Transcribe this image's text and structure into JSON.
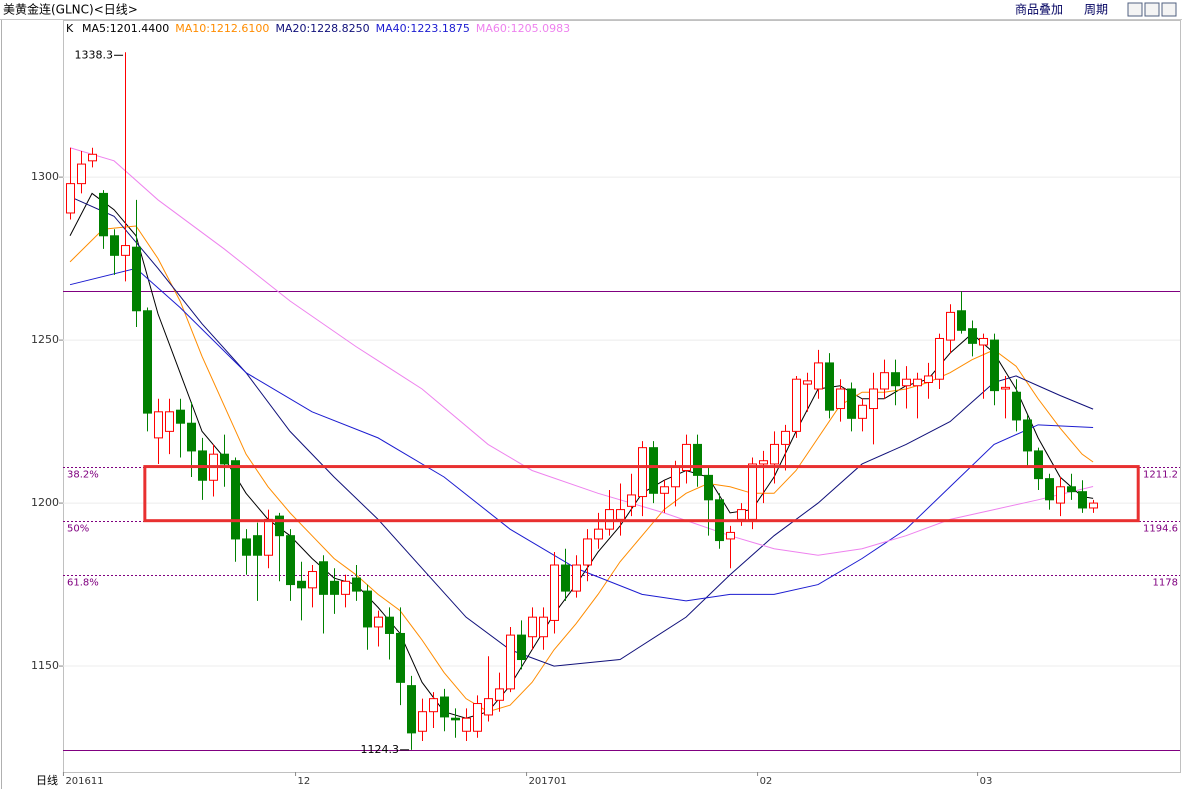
{
  "chart_data": {
    "type": "candlestick",
    "title": "美黄金连(GLNC)<日线>",
    "toolbar": [
      "商品叠加",
      "周期"
    ],
    "indicator": "K",
    "period_label": "日线",
    "up_color": "#ff0000",
    "down_color": "#008000",
    "open": [
      1289,
      1298,
      1305,
      1295,
      1282,
      1276,
      1278.5,
      1259,
      1220,
      1222,
      1228.5,
      1224.5,
      1216,
      1207,
      1215,
      1213,
      1189,
      1190,
      1184,
      1196,
      1190,
      1176,
      1174,
      1182,
      1176,
      1172,
      1177,
      1173,
      1162,
      1165,
      1160,
      1144,
      1130,
      1136,
      1140.5,
      1134,
      1130,
      1130,
      1135,
      1139.5,
      1143,
      1159.5,
      1159,
      1159,
      1164,
      1181,
      1173,
      1181,
      1189,
      1192,
      1195,
      1199,
      1202,
      1217,
      1203,
      1205,
      1210,
      1218,
      1208.5,
      1201,
      1189,
      1195,
      1195,
      1212,
      1212,
      1218,
      1222,
      1236.5,
      1235,
      1243,
      1229,
      1235,
      1226,
      1229,
      1235,
      1240,
      1236,
      1236,
      1237,
      1238,
      1250,
      1259,
      1253.5,
      1248.5,
      1250,
      1235,
      1234,
      1225.5,
      1216,
      1207.5,
      1200,
      1205,
      1203.5,
      1198.5
    ],
    "high": [
      1309,
      1308,
      1309,
      1296,
      1284,
      1338.3,
      1293,
      1260,
      1232,
      1232,
      1232,
      1231,
      1220,
      1218,
      1221,
      1214,
      1192,
      1194,
      1198,
      1197,
      1192,
      1182,
      1181,
      1184,
      1180,
      1178,
      1181,
      1175,
      1167,
      1168,
      1168,
      1147,
      1140,
      1142,
      1143,
      1137,
      1137,
      1141,
      1153,
      1148,
      1162,
      1164,
      1168,
      1168,
      1185,
      1186,
      1184,
      1192,
      1197,
      1204,
      1206,
      1209,
      1219,
      1219,
      1207,
      1213,
      1221,
      1221,
      1211,
      1203,
      1193,
      1200,
      1214,
      1216,
      1222,
      1224,
      1239,
      1240,
      1247,
      1246,
      1238,
      1237,
      1232,
      1240,
      1244,
      1244,
      1242,
      1240,
      1243,
      1252,
      1261,
      1265,
      1256,
      1252,
      1252,
      1239,
      1238,
      1227,
      1217,
      1209,
      1208,
      1209,
      1207,
      1201
    ],
    "low": [
      1287,
      1295,
      1303,
      1278,
      1270,
      1268,
      1254,
      1222,
      1212,
      1215,
      1214,
      1208,
      1201,
      1202,
      1205,
      1182,
      1178,
      1170,
      1180,
      1176,
      1170,
      1164,
      1168,
      1160,
      1166,
      1168,
      1170,
      1155,
      1156,
      1152,
      1138,
      1124.3,
      1127,
      1131,
      1130,
      1128,
      1127,
      1128,
      1133,
      1136,
      1142,
      1149,
      1155,
      1155,
      1160,
      1170,
      1171,
      1176,
      1186,
      1190,
      1190,
      1196,
      1196,
      1200,
      1197,
      1199,
      1206,
      1205,
      1190,
      1186,
      1180,
      1193,
      1192,
      1200,
      1206,
      1210,
      1220,
      1228,
      1232,
      1226,
      1225,
      1222,
      1222,
      1218,
      1232,
      1230,
      1229,
      1226,
      1232,
      1235,
      1246,
      1252,
      1245,
      1232,
      1230,
      1226,
      1222,
      1211,
      1204,
      1198,
      1196,
      1201,
      1197,
      1197
    ],
    "close": [
      1298,
      1304,
      1307,
      1282,
      1276,
      1279,
      1259,
      1227.6,
      1228,
      1228,
      1224.5,
      1216,
      1207,
      1215,
      1212,
      1189,
      1184,
      1184,
      1195,
      1190,
      1175,
      1174,
      1179,
      1172,
      1172,
      1176,
      1173,
      1162,
      1165,
      1160,
      1145,
      1129.5,
      1136,
      1140,
      1134.4,
      1133.5,
      1134,
      1138.5,
      1140,
      1143,
      1159.5,
      1152,
      1165,
      1165,
      1181,
      1173,
      1181,
      1189,
      1192,
      1198,
      1198,
      1202.5,
      1217,
      1203,
      1205,
      1211,
      1218,
      1208.5,
      1201,
      1188.5,
      1191,
      1198,
      1212,
      1213,
      1218,
      1222,
      1238,
      1237.5,
      1243,
      1228.5,
      1235,
      1226,
      1230,
      1235,
      1240,
      1236,
      1238,
      1238,
      1239,
      1250.5,
      1258.5,
      1253,
      1249,
      1250.5,
      1234.5,
      1235.5,
      1225.5,
      1216,
      1207.5,
      1201,
      1205,
      1203.5,
      1198.5,
      1200
    ],
    "series": [
      {
        "name": "MA5:1201.4400",
        "color": "#000000",
        "x": [
          0,
          2,
          4,
          6,
          8,
          10,
          12,
          14,
          16,
          18,
          20,
          22,
          24,
          26,
          28,
          30,
          32,
          34,
          36,
          38,
          40,
          42,
          44,
          46,
          48,
          50,
          52,
          54,
          56,
          58,
          60,
          62,
          64,
          66,
          68,
          70,
          72,
          74,
          76,
          78,
          80,
          82,
          84,
          86,
          88,
          90,
          92,
          93
        ],
        "values": [
          1282,
          1295,
          1290,
          1282,
          1258,
          1240,
          1222,
          1214,
          1203,
          1195,
          1190,
          1183,
          1177,
          1175,
          1168,
          1160,
          1145,
          1136,
          1134,
          1136,
          1144,
          1155,
          1166,
          1175,
          1185,
          1193,
          1203,
          1207,
          1210,
          1208,
          1197,
          1198,
          1208,
          1222,
          1235,
          1236,
          1232,
          1232,
          1236,
          1238,
          1246,
          1252,
          1246,
          1235,
          1220,
          1208,
          1202,
          1201.44
        ]
      },
      {
        "name": "MA10:1212.6100",
        "color": "#ff8c00",
        "x": [
          0,
          3,
          6,
          8,
          10,
          12,
          14,
          16,
          18,
          20,
          22,
          24,
          26,
          28,
          30,
          32,
          34,
          36,
          38,
          40,
          42,
          44,
          46,
          48,
          50,
          52,
          54,
          56,
          58,
          60,
          62,
          64,
          66,
          68,
          70,
          72,
          74,
          76,
          78,
          80,
          82,
          84,
          86,
          88,
          90,
          92,
          93
        ],
        "values": [
          1274,
          1284,
          1285,
          1275,
          1262,
          1245,
          1230,
          1215,
          1205,
          1197,
          1190,
          1183,
          1178,
          1172,
          1167,
          1158,
          1148,
          1140,
          1136,
          1138,
          1145,
          1155,
          1163,
          1172,
          1182,
          1190,
          1198,
          1203,
          1206,
          1205,
          1203,
          1203,
          1210,
          1220,
          1230,
          1234,
          1234,
          1235,
          1237,
          1240,
          1244,
          1247,
          1242,
          1232,
          1223,
          1215,
          1212.61
        ]
      },
      {
        "name": "MA20:1228.8250",
        "color": "#10107a",
        "x": [
          0,
          4,
          6,
          8,
          12,
          16,
          20,
          24,
          28,
          32,
          36,
          40,
          44,
          50,
          56,
          60,
          64,
          68,
          72,
          76,
          80,
          84,
          86,
          88,
          90,
          93
        ],
        "values": [
          1294,
          1288,
          1280,
          1272,
          1255,
          1240,
          1222,
          1208,
          1195,
          1180,
          1165,
          1155,
          1150,
          1152,
          1165,
          1178,
          1190,
          1200,
          1212,
          1218,
          1225,
          1237,
          1239,
          1236,
          1233,
          1228.83
        ]
      },
      {
        "name": "MA40:1223.1875",
        "color": "#1c1cd0",
        "x": [
          0,
          6,
          10,
          16,
          22,
          28,
          34,
          40,
          46,
          52,
          56,
          60,
          64,
          68,
          72,
          76,
          80,
          84,
          88,
          93
        ],
        "values": [
          1267,
          1272,
          1260,
          1240,
          1228,
          1220,
          1208,
          1192,
          1180,
          1172,
          1170,
          1172,
          1172,
          1175,
          1183,
          1192,
          1205,
          1218,
          1224,
          1223.19
        ]
      },
      {
        "name": "MA60:1205.0983",
        "color": "#ee82ee",
        "x": [
          0,
          4,
          8,
          14,
          20,
          26,
          32,
          38,
          42,
          48,
          54,
          60,
          64,
          68,
          72,
          76,
          80,
          84,
          88,
          93
        ],
        "values": [
          1309,
          1305,
          1293,
          1278,
          1262,
          1248,
          1235,
          1218,
          1210,
          1203,
          1197,
          1190,
          1186,
          1184,
          1186,
          1190,
          1195,
          1198,
          1201,
          1205.1
        ]
      }
    ],
    "levels": [
      {
        "value": 1211.2,
        "label": "38.2%"
      },
      {
        "value": 1194.6,
        "label": "50%"
      },
      {
        "value": 1178.0,
        "label": "61.8%"
      }
    ],
    "level_color": "#800080",
    "hlines": [
      1265,
      1124.3
    ],
    "hline_color": "#800080",
    "highlight": {
      "x": [
        6.8,
        97.1
      ],
      "y": [
        1194.6,
        1211.2
      ],
      "color": "#e83030"
    },
    "extremes": [
      {
        "index": 5,
        "value": 1338.3
      },
      {
        "index": 31,
        "value": 1124.3
      }
    ],
    "xlim": [
      -0.64,
      100.9
    ],
    "xticks": [
      {
        "value": -0.6,
        "label": "201611"
      },
      {
        "value": 20.5,
        "label": "12"
      },
      {
        "value": 41.5,
        "label": "201701"
      },
      {
        "value": 62.5,
        "label": "02"
      },
      {
        "value": 82.5,
        "label": "03"
      }
    ],
    "ylim": [
      1117.5,
      1348.2
    ],
    "yticks": [
      1150,
      1200,
      1250,
      1300
    ],
    "grid": true
  }
}
